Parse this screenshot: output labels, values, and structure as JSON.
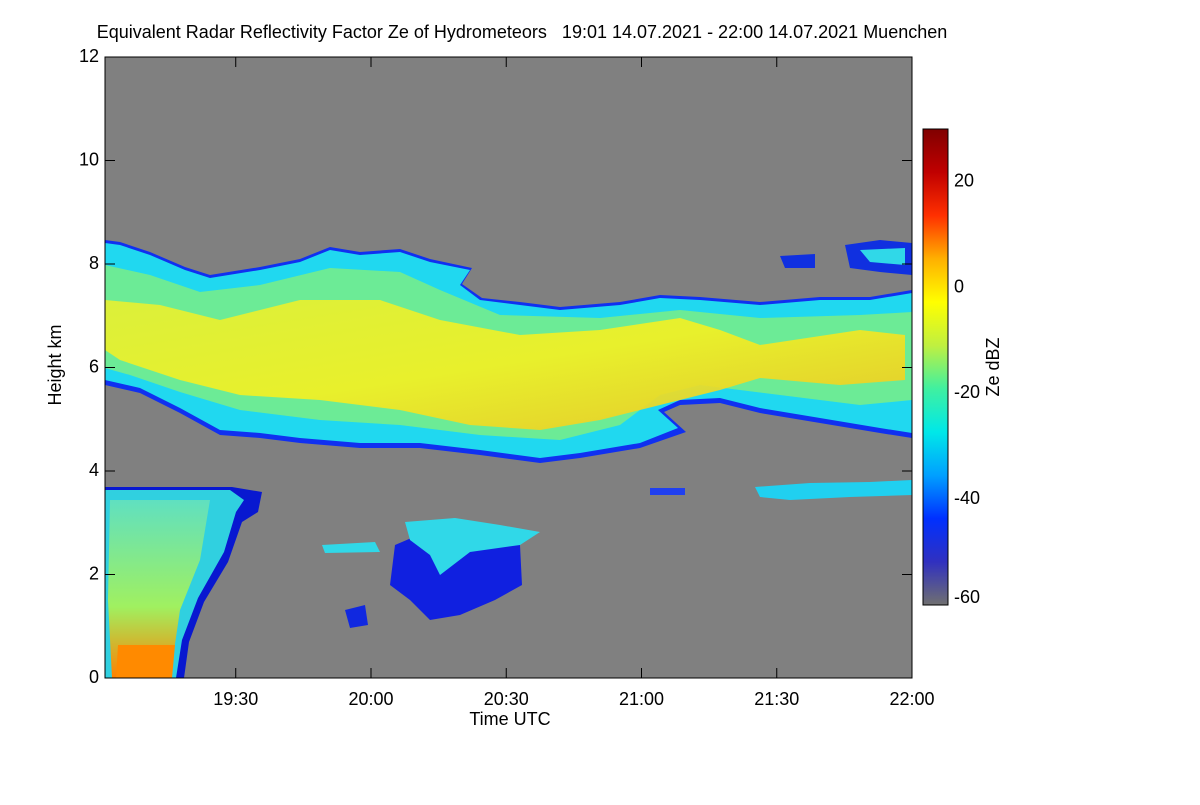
{
  "chart_data": {
    "type": "heatmap",
    "title": "Equivalent Radar Reflectivity Factor Ze of Hydrometeors   19:01 14.07.2021 - 22:00 14.07.2021 Muenchen",
    "x_label": "Time UTC",
    "y_label": "Height km",
    "xlim": [
      19.0167,
      22
    ],
    "xticks": [
      {
        "value": 19.5,
        "label": "19:30"
      },
      {
        "value": 20,
        "label": "20:00"
      },
      {
        "value": 20.5,
        "label": "20:30"
      },
      {
        "value": 21,
        "label": "21:00"
      },
      {
        "value": 21.5,
        "label": "21:30"
      },
      {
        "value": 22,
        "label": "22:00"
      }
    ],
    "ylim": [
      0,
      12
    ],
    "yticks": [
      0,
      2,
      4,
      6,
      8,
      10,
      12
    ],
    "colorbar": {
      "label": "Ze dBZ",
      "clim": [
        -60,
        30
      ],
      "ticks": [
        -60,
        -40,
        -20,
        0,
        20
      ],
      "colormap": [
        "#707070",
        "#3030c0",
        "#0030ff",
        "#00a0ff",
        "#00e8e8",
        "#40f0a0",
        "#c0f040",
        "#ffff00",
        "#ffb000",
        "#ff3000",
        "#c00000",
        "#800000"
      ]
    },
    "background_color": "#808080"
  }
}
